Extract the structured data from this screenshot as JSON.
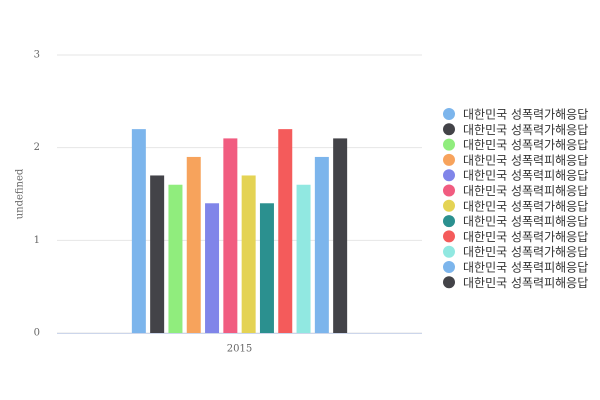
{
  "chart_data": {
    "type": "bar",
    "y_label": "undefined",
    "categories": [
      "2015"
    ],
    "ylim": [
      0,
      3
    ],
    "yticks": [
      0,
      1,
      2,
      3
    ],
    "grid": true,
    "legend": "right",
    "series": [
      {
        "name": "대한민국 성폭력가해응답",
        "color": "#7cb5ec",
        "values": [
          2.2
        ]
      },
      {
        "name": "대한민국 성폭력가해응답",
        "color": "#434348",
        "values": [
          1.7
        ]
      },
      {
        "name": "대한민국 성폭력가해응답",
        "color": "#90ed7d",
        "values": [
          1.6
        ]
      },
      {
        "name": "대한민국 성폭력피해응답",
        "color": "#f7a35c",
        "values": [
          1.9
        ]
      },
      {
        "name": "대한민국 성폭력피해응답",
        "color": "#8085e9",
        "values": [
          1.4
        ]
      },
      {
        "name": "대한민국 성폭력피해응답",
        "color": "#f15c80",
        "values": [
          2.1
        ]
      },
      {
        "name": "대한민국 성폭력가해응답",
        "color": "#e4d354",
        "values": [
          1.7
        ]
      },
      {
        "name": "대한민국 성폭력피해응답",
        "color": "#2b908f",
        "values": [
          1.4
        ]
      },
      {
        "name": "대한민국 성폭력가해응답",
        "color": "#f45b5b",
        "values": [
          2.2
        ]
      },
      {
        "name": "대한민국 성폭력가해응답",
        "color": "#91e8e1",
        "values": [
          1.6
        ]
      },
      {
        "name": "대한민국 성폭력피해응답",
        "color": "#7cb5ec",
        "values": [
          1.9
        ]
      },
      {
        "name": "대한민국 성폭력피해응답",
        "color": "#434348",
        "values": [
          2.1
        ]
      }
    ]
  }
}
